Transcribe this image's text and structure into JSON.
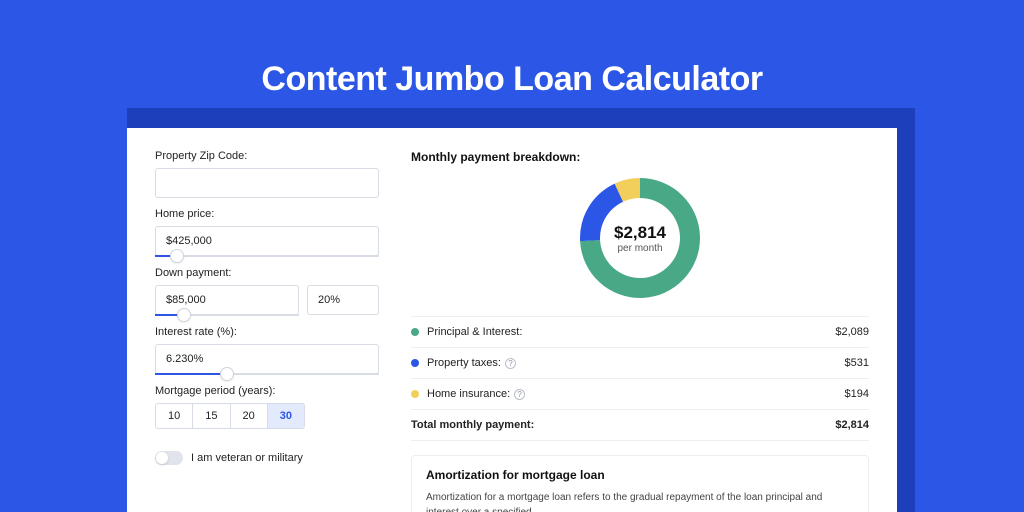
{
  "page": {
    "title": "Content Jumbo Loan Calculator",
    "bg_color": "#2c56e6",
    "shadow_color": "#1d3fbc",
    "card_bg": "#ffffff"
  },
  "form": {
    "zip_label": "Property Zip Code:",
    "zip_value": "",
    "home_price_label": "Home price:",
    "home_price_value": "$425,000",
    "home_price_slider_pct": 10,
    "down_payment_label": "Down payment:",
    "down_payment_value": "$85,000",
    "down_payment_pct_value": "20%",
    "down_payment_slider_pct": 20,
    "interest_label": "Interest rate (%):",
    "interest_value": "6.230%",
    "interest_slider_pct": 32,
    "period_label": "Mortgage period (years):",
    "periods": [
      "10",
      "15",
      "20",
      "30"
    ],
    "period_selected": "30",
    "veteran_label": "I am veteran or military",
    "veteran_on": false
  },
  "breakdown": {
    "title": "Monthly payment breakdown:",
    "donut": {
      "type": "donut",
      "center_value": "$2,814",
      "center_sub": "per month",
      "outer_radius": 60,
      "inner_radius": 40,
      "bg": "#ffffff",
      "slices": [
        {
          "label": "Principal & Interest",
          "value": 2089,
          "color": "#49a987",
          "start_deg": 0,
          "end_deg": 267
        },
        {
          "label": "Property taxes",
          "value": 531,
          "color": "#2c56e6",
          "start_deg": 267,
          "end_deg": 335
        },
        {
          "label": "Home insurance",
          "value": 194,
          "color": "#f2cf5b",
          "start_deg": 335,
          "end_deg": 360
        }
      ]
    },
    "rows": [
      {
        "dot": "#49a987",
        "label": "Principal & Interest:",
        "info": false,
        "value": "$2,089"
      },
      {
        "dot": "#2c56e6",
        "label": "Property taxes:",
        "info": true,
        "value": "$531"
      },
      {
        "dot": "#f2cf5b",
        "label": "Home insurance:",
        "info": true,
        "value": "$194"
      }
    ],
    "total_label": "Total monthly payment:",
    "total_value": "$2,814"
  },
  "amortization": {
    "title": "Amortization for mortgage loan",
    "body": "Amortization for a mortgage loan refers to the gradual repayment of the loan principal and interest over a specified"
  }
}
